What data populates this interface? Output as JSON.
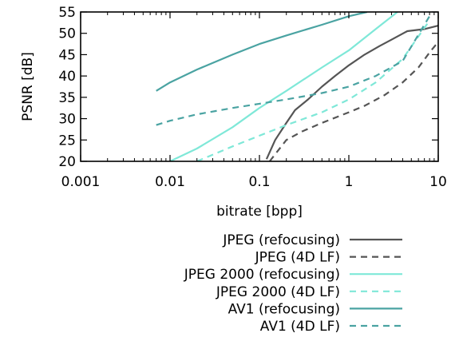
{
  "chart_data": {
    "type": "line",
    "xlabel": "bitrate [bpp]",
    "ylabel": "PSNR [dB]",
    "xscale": "log",
    "xlim": [
      0.001,
      10
    ],
    "ylim": [
      20,
      55
    ],
    "x_ticks": [
      0.001,
      0.01,
      0.1,
      1,
      10
    ],
    "x_tick_labels": [
      "0.001",
      "0.01",
      "0.1",
      "1",
      "10"
    ],
    "y_ticks": [
      20,
      25,
      30,
      35,
      40,
      45,
      50,
      55
    ],
    "y_tick_labels": [
      "20",
      "25",
      "30",
      "35",
      "40",
      "45",
      "50",
      "55"
    ],
    "grid": false,
    "legend_position": "below-chart",
    "series": [
      {
        "name": "JPEG (refocusing)",
        "color": "#555555",
        "dash": "solid",
        "x": [
          0.12,
          0.15,
          0.2,
          0.25,
          0.35,
          0.5,
          0.7,
          1.0,
          1.5,
          2.2,
          3.0,
          4.5,
          7.0,
          10.0
        ],
        "y": [
          20.5,
          25.0,
          29.0,
          32.0,
          34.5,
          37.5,
          40.0,
          42.5,
          45.0,
          47.0,
          48.5,
          50.5,
          51.0,
          51.8
        ]
      },
      {
        "name": "JPEG (4D LF)",
        "color": "#555555",
        "dash": "dashed",
        "x": [
          0.13,
          0.2,
          0.3,
          0.5,
          1.0,
          1.5,
          2.5,
          4.0,
          6.0,
          8.0,
          10.0
        ],
        "y": [
          20.0,
          25.0,
          27.0,
          29.0,
          31.5,
          33.0,
          35.5,
          38.5,
          42.0,
          45.5,
          48.0
        ]
      },
      {
        "name": "JPEG 2000 (refocusing)",
        "color": "#7fe8d8",
        "dash": "solid",
        "x": [
          0.01,
          0.02,
          0.05,
          0.1,
          0.2,
          0.5,
          1.0,
          2.0,
          3.5
        ],
        "y": [
          20.0,
          23.0,
          28.0,
          32.5,
          36.5,
          42.0,
          46.0,
          51.0,
          55.0
        ]
      },
      {
        "name": "JPEG 2000 (4D LF)",
        "color": "#7fe8d8",
        "dash": "dashed",
        "x": [
          0.02,
          0.05,
          0.1,
          0.2,
          0.5,
          1.0,
          2.0,
          4.0,
          8.0
        ],
        "y": [
          20.0,
          23.5,
          26.0,
          28.5,
          31.5,
          34.5,
          38.5,
          44.0,
          53.0
        ]
      },
      {
        "name": "AV1 (refocusing)",
        "color": "#4aa3a2",
        "dash": "solid",
        "x": [
          0.007,
          0.01,
          0.02,
          0.05,
          0.1,
          0.2,
          0.5,
          1.0,
          1.6
        ],
        "y": [
          36.5,
          38.5,
          41.5,
          45.0,
          47.5,
          49.5,
          52.0,
          54.0,
          55.0
        ]
      },
      {
        "name": "AV1 (4D LF)",
        "color": "#4aa3a2",
        "dash": "dashed",
        "x": [
          0.007,
          0.01,
          0.02,
          0.05,
          0.1,
          0.2,
          0.5,
          1.0,
          2.0,
          4.0,
          8.0
        ],
        "y": [
          28.5,
          29.5,
          31.0,
          32.5,
          33.5,
          34.5,
          36.0,
          37.5,
          40.0,
          43.5,
          54.0
        ]
      }
    ]
  }
}
